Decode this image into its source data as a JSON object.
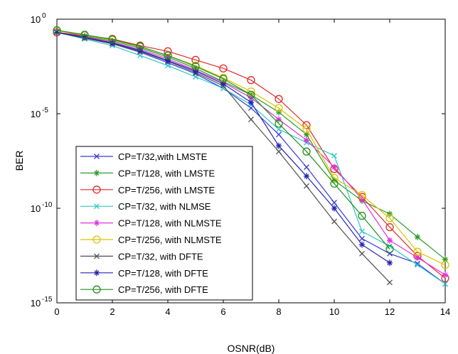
{
  "chart_data": {
    "type": "line",
    "title": "",
    "xlabel": "OSNR(dB)",
    "ylabel": "BER",
    "xlim": [
      0,
      14
    ],
    "ylim_exponent": [
      -15,
      0
    ],
    "y_scale": "log",
    "grid": false,
    "legend_position": "lower-left",
    "x_ticks": [
      "0",
      "2",
      "4",
      "6",
      "8",
      "10",
      "12",
      "14"
    ],
    "y_ticks": [
      {
        "base": "10",
        "exp": "0",
        "value": 0
      },
      {
        "base": "10",
        "exp": "-5",
        "value": -5
      },
      {
        "base": "10",
        "exp": "-10",
        "value": -10
      },
      {
        "base": "10",
        "exp": "-15",
        "value": -15
      }
    ],
    "series": [
      {
        "name": "CP=T/32,with LMSTE",
        "color": "#3a3ad6",
        "marker": "x",
        "x": [
          0,
          1,
          2,
          3,
          4,
          5,
          6,
          7,
          8,
          9,
          10,
          11,
          12,
          13,
          14
        ],
        "y": [
          0.2,
          0.1,
          0.05,
          0.018,
          0.005,
          0.0013,
          0.00022,
          2e-05,
          8e-07,
          1.5e-08,
          2e-10,
          2.5e-12,
          4e-13,
          1.2e-13,
          1e-14
        ]
      },
      {
        "name": "CP=T/128, with LMSTE",
        "color": "#2e9a2e",
        "marker": "star",
        "x": [
          0,
          1,
          2,
          3,
          4,
          5,
          6,
          7,
          8,
          9,
          10,
          11,
          12,
          13,
          14
        ],
        "y": [
          0.2,
          0.13,
          0.07,
          0.03,
          0.01,
          0.0025,
          0.0005,
          0.0001,
          1.2e-05,
          8e-07,
          3e-09,
          2.5e-10,
          5e-11,
          3e-12,
          2e-13
        ]
      },
      {
        "name": "CP=T/256, with LMSTE",
        "color": "#e02a2a",
        "marker": "circle",
        "x": [
          0,
          1,
          2,
          3,
          4,
          5,
          6,
          7,
          8,
          9,
          10,
          11,
          12,
          13,
          14
        ],
        "y": [
          0.2,
          0.14,
          0.09,
          0.04,
          0.02,
          0.007,
          0.0025,
          0.0006,
          6e-05,
          2.5e-06,
          1.2e-08,
          4e-10,
          1e-11,
          3e-13,
          2e-14
        ]
      },
      {
        "name": "CP=T/32, with NLMSE",
        "color": "#2ec6c6",
        "marker": "x",
        "x": [
          0,
          1,
          2,
          3,
          4,
          5,
          6,
          7,
          8,
          9,
          10,
          11,
          12,
          13,
          14
        ],
        "y": [
          0.2,
          0.09,
          0.04,
          0.012,
          0.0035,
          0.0009,
          0.00022,
          3e-05,
          1.5e-06,
          3e-07,
          6e-08,
          6e-12,
          1e-12,
          1e-13,
          1e-14
        ]
      },
      {
        "name": "CP=T/128, with NLMSTE",
        "color": "#e030e0",
        "marker": "star",
        "x": [
          0,
          1,
          2,
          3,
          4,
          5,
          6,
          7,
          8,
          9,
          10,
          11,
          12,
          13,
          14
        ],
        "y": [
          0.2,
          0.12,
          0.06,
          0.025,
          0.008,
          0.002,
          0.00045,
          7e-05,
          5e-06,
          4e-07,
          1.5e-08,
          3e-10,
          2e-12,
          2.5e-13,
          3e-14
        ]
      },
      {
        "name": "CP=T/256, with NLMSTE",
        "color": "#d8c400",
        "marker": "circle",
        "x": [
          0,
          1,
          2,
          3,
          4,
          5,
          6,
          7,
          8,
          9,
          10,
          11,
          12,
          13,
          14
        ],
        "y": [
          0.25,
          0.14,
          0.08,
          0.035,
          0.012,
          0.0035,
          0.0008,
          0.00015,
          2e-05,
          1.5e-06,
          4e-09,
          5e-10,
          3e-11,
          5e-13,
          1e-13
        ]
      },
      {
        "name": "CP=T/32, with DFTE",
        "color": "#505050",
        "marker": "x",
        "x": [
          0,
          1,
          2,
          3,
          4,
          5,
          6,
          7,
          8,
          9,
          10,
          11,
          12
        ],
        "y": [
          0.2,
          0.1,
          0.05,
          0.02,
          0.006,
          0.0015,
          0.0003,
          5e-06,
          1e-07,
          1.5e-09,
          2e-11,
          4e-13,
          1.2e-14
        ]
      },
      {
        "name": "CP=T/128, with DFTE",
        "color": "#2424b4",
        "marker": "star",
        "x": [
          0,
          1,
          2,
          3,
          4,
          5,
          6,
          7,
          8,
          9,
          10,
          11,
          12
        ],
        "y": [
          0.2,
          0.11,
          0.055,
          0.022,
          0.0065,
          0.0018,
          0.00038,
          4e-05,
          2e-07,
          5e-09,
          1e-10,
          1.2e-12,
          1.3e-13
        ]
      },
      {
        "name": "CP=T/256, with DFTE",
        "color": "#1f8f1f",
        "marker": "circle",
        "x": [
          0,
          1,
          2,
          3,
          4,
          5,
          6,
          7,
          8,
          9,
          10,
          11,
          12
        ],
        "y": [
          0.26,
          0.15,
          0.085,
          0.036,
          0.012,
          0.0032,
          0.0007,
          0.0001,
          3e-06,
          1e-07,
          2e-09,
          4e-11,
          7e-13
        ]
      }
    ]
  }
}
